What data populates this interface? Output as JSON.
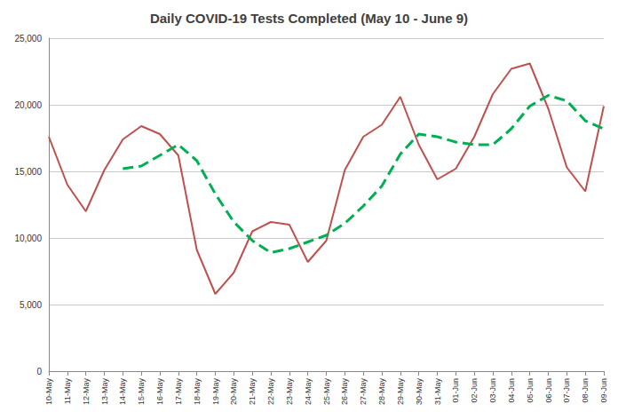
{
  "chart_data": {
    "type": "line",
    "title": "Daily COVID-19 Tests Completed (May 10 - June 9)",
    "categories": [
      "10-May",
      "11-May",
      "12-May",
      "13-May",
      "14-May",
      "15-May",
      "16-May",
      "17-May",
      "18-May",
      "19-May",
      "20-May",
      "21-May",
      "22-May",
      "23-May",
      "24-May",
      "25-May",
      "26-May",
      "27-May",
      "28-May",
      "29-May",
      "30-May",
      "31-May",
      "01-Jun",
      "02-Jun",
      "03-Jun",
      "04-Jun",
      "05-Jun",
      "06-Jun",
      "07-Jun",
      "08-Jun",
      "09-Jun"
    ],
    "series": [
      {
        "color": "#c0504d",
        "line_style": "solid",
        "values": [
          17600,
          14000,
          12000,
          15100,
          17400,
          18400,
          17800,
          16200,
          9100,
          5800,
          7400,
          10500,
          11200,
          11000,
          8200,
          9800,
          15100,
          17600,
          18500,
          20600,
          17000,
          14400,
          15200,
          17600,
          20800,
          22700,
          23100,
          19700,
          15300,
          13500,
          19900
        ]
      },
      {
        "color": "#00b050",
        "line_style": "dashed",
        "values": [
          null,
          null,
          null,
          null,
          15200,
          15400,
          16200,
          17000,
          15800,
          13300,
          11200,
          9800,
          8900,
          9200,
          9700,
          10200,
          11100,
          12400,
          13900,
          16300,
          17800,
          17600,
          17200,
          17000,
          17000,
          18200,
          19900,
          20700,
          20300,
          18800,
          18200
        ]
      }
    ],
    "ylim": [
      0,
      25000
    ],
    "yticks": [
      0,
      {
        "value": 5000,
        "label": "5,000"
      },
      {
        "value": 10000,
        "label": "10,000"
      },
      {
        "value": 15000,
        "label": "15,000"
      },
      {
        "value": 20000,
        "label": "20,000"
      },
      {
        "value": 25000,
        "label": "25,000"
      }
    ],
    "grid": true
  }
}
